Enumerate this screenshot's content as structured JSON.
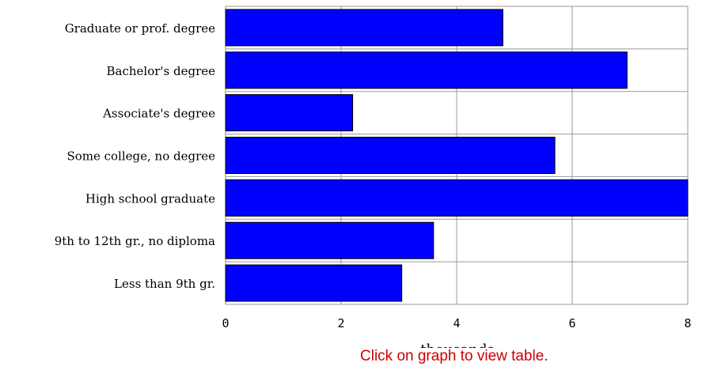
{
  "chart_data": {
    "type": "bar",
    "orientation": "horizontal",
    "categories": [
      "Graduate or prof. degree",
      "Bachelor's degree",
      "Associate's degree",
      "Some college, no degree",
      "High school graduate",
      "9th to 12th gr., no diploma",
      "Less than 9th gr."
    ],
    "values": [
      4.8,
      6.95,
      2.2,
      5.7,
      8.0,
      3.6,
      3.05
    ],
    "xlabel": "thousands",
    "ylabel": "",
    "xlim": [
      0,
      8
    ],
    "xticks": [
      "0",
      "2",
      "4",
      "6",
      "8"
    ],
    "grid": true,
    "bar_color": "#0000ff",
    "bar_edge_color": "#000000",
    "grid_color": "#999999"
  },
  "footer": {
    "note": "Click on graph to view table.",
    "note_color": "#cc0000"
  }
}
